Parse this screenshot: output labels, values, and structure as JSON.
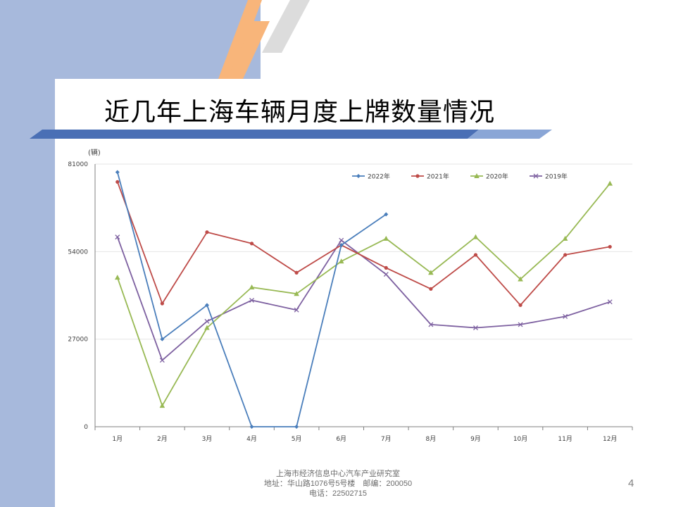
{
  "slide": {
    "title": "近几年上海车辆月度上牌数量情况",
    "page_number": "4",
    "footer_lines": [
      "上海市经济信息中心汽车产业研究室",
      "地址：华山路1076号5号楼　邮编：200050",
      "电话：22502715"
    ],
    "colors": {
      "band": "#a7b9dc",
      "bar_dark": "#4a6fb5",
      "bar_light": "#8aa6d6",
      "stripe_orange": "#f8b57a",
      "stripe_gray": "#d9d9d9"
    }
  },
  "chart_data": {
    "type": "line",
    "ylabel": "(辆)",
    "ylim": [
      0,
      81000
    ],
    "yticks": [
      0,
      27000,
      54000,
      81000
    ],
    "grid": true,
    "legend_position": "top",
    "categories": [
      "1月",
      "2月",
      "3月",
      "4月",
      "5月",
      "6月",
      "7月",
      "8月",
      "9月",
      "10月",
      "11月",
      "12月"
    ],
    "series": [
      {
        "name": "2022年",
        "color": "#4a7ebb",
        "marker": "diamond",
        "values": [
          78500,
          27000,
          37500,
          0,
          0,
          56000,
          65500,
          null,
          null,
          null,
          null,
          null
        ]
      },
      {
        "name": "2021年",
        "color": "#be4b48",
        "marker": "circle",
        "values": [
          75500,
          38000,
          60000,
          56500,
          47500,
          56000,
          49000,
          42500,
          53000,
          37500,
          53000,
          55500
        ]
      },
      {
        "name": "2020年",
        "color": "#98b954",
        "marker": "triangle",
        "values": [
          46000,
          6500,
          30500,
          43000,
          41000,
          51000,
          58000,
          47500,
          58500,
          45500,
          58000,
          75000
        ]
      },
      {
        "name": "2019年",
        "color": "#7d60a0",
        "marker": "x",
        "values": [
          58500,
          20500,
          32500,
          39000,
          36000,
          57500,
          47000,
          31500,
          30500,
          31500,
          34000,
          38500
        ]
      }
    ]
  }
}
